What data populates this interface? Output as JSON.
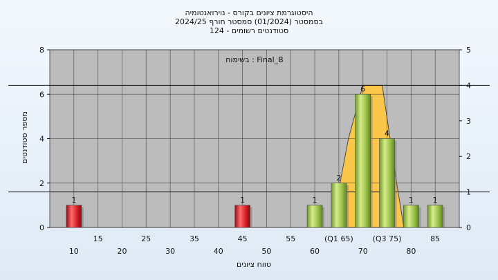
{
  "chart_data": {
    "type": "bar",
    "title_lines": [
      "היסטוגרמת ציונים בקורס - נוירואנטומיה",
      "בסמסטר  (01/2024)  סמסטר חורף 2024/25",
      "סטודנטים רשומים - 124"
    ],
    "annotation": "בשימוח : Final_B",
    "xlabel": "טווח ציונים",
    "ylabel": "מספר סטודנטים",
    "ylim": [
      0,
      8
    ],
    "yticks": [
      0,
      2,
      4,
      6,
      8
    ],
    "y2lim": [
      0,
      5
    ],
    "y2ticks": [
      0,
      1,
      2,
      3,
      4,
      5
    ],
    "xlim": [
      5,
      90
    ],
    "x_tick_labels_row1": [
      {
        "x": 15,
        "label": "15"
      },
      {
        "x": 25,
        "label": "25"
      },
      {
        "x": 35,
        "label": "35"
      },
      {
        "x": 45,
        "label": "45"
      },
      {
        "x": 55,
        "label": "55"
      },
      {
        "x": 65,
        "label": "(Q1 65)"
      },
      {
        "x": 75,
        "label": "(Q3 75)"
      },
      {
        "x": 85,
        "label": "85"
      }
    ],
    "x_tick_labels_row2": [
      {
        "x": 10,
        "label": "10"
      },
      {
        "x": 20,
        "label": "20"
      },
      {
        "x": 30,
        "label": "30"
      },
      {
        "x": 40,
        "label": "40"
      },
      {
        "x": 50,
        "label": "50"
      },
      {
        "x": 60,
        "label": "60"
      },
      {
        "x": 70,
        "label": "70"
      },
      {
        "x": 80,
        "label": "80"
      }
    ],
    "bars": [
      {
        "x": 10,
        "value": 1,
        "label": "1",
        "color": "red"
      },
      {
        "x": 45,
        "value": 1,
        "label": "1",
        "color": "red"
      },
      {
        "x": 60,
        "value": 1,
        "label": "1",
        "color": "green"
      },
      {
        "x": 65,
        "value": 2,
        "label": "2",
        "color": "green"
      },
      {
        "x": 70,
        "value": 6,
        "label": "6",
        "color": "green"
      },
      {
        "x": 75,
        "value": 4,
        "label": "4",
        "color": "green"
      },
      {
        "x": 80,
        "value": 1,
        "label": "1",
        "color": "green"
      },
      {
        "x": 85,
        "value": 1,
        "label": "1",
        "color": "green"
      }
    ],
    "box_polygon": [
      [
        63.5,
        0
      ],
      [
        67,
        4
      ],
      [
        70,
        6.4
      ],
      [
        74,
        6.4
      ],
      [
        77,
        2
      ],
      [
        78.5,
        0
      ]
    ],
    "reference_lines": [
      6.4,
      1.6
    ],
    "colors": {
      "plot_bg": "#bcbcbc",
      "grid": "#222222",
      "red_bar": "#d8222a",
      "green_bar": "#9cc24a",
      "box_fill": "#ffc846"
    }
  }
}
